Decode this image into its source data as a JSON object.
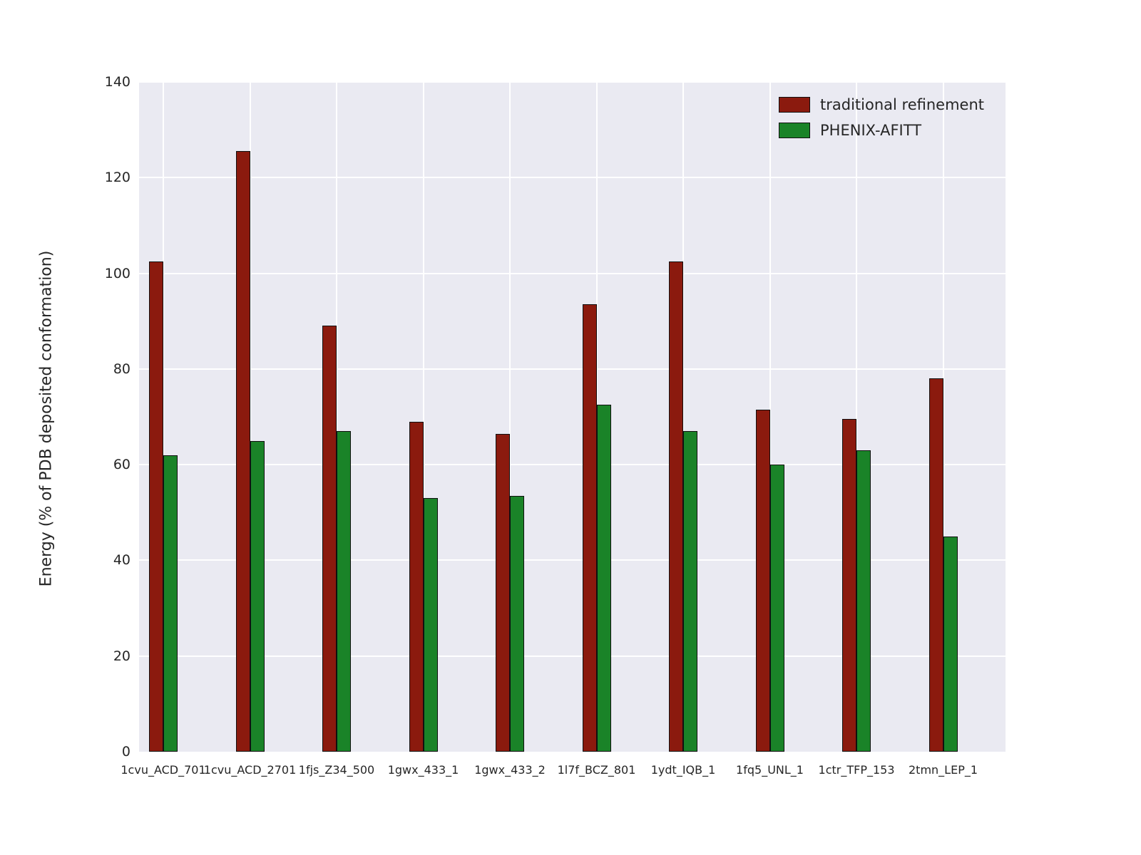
{
  "chart_data": {
    "type": "bar",
    "title": "",
    "xlabel": "",
    "ylabel": "Energy (% of PDB deposited conformation)",
    "ylim": [
      0,
      140
    ],
    "yticks": [
      0,
      20,
      40,
      60,
      80,
      100,
      120,
      140
    ],
    "grid": true,
    "legend_position": "upper right",
    "plot_background": "#eaeaf2",
    "grid_color": "#ffffff",
    "categories": [
      "1cvu_ACD_701",
      "1cvu_ACD_2701",
      "1fjs_Z34_500",
      "1gwx_433_1",
      "1gwx_433_2",
      "1l7f_BCZ_801",
      "1ydt_IQB_1",
      "1fq5_UNL_1",
      "1ctr_TFP_153",
      "2tmn_LEP_1"
    ],
    "series": [
      {
        "name": "traditional refinement",
        "color": "#8b1a0e",
        "values": [
          102.5,
          125.5,
          89,
          69,
          66.5,
          93.5,
          102.5,
          71.5,
          69.5,
          78
        ]
      },
      {
        "name": "PHENIX-AFITT",
        "color": "#1a8328",
        "values": [
          62,
          65,
          67,
          53,
          53.5,
          72.5,
          67,
          60,
          63,
          45
        ]
      }
    ]
  }
}
